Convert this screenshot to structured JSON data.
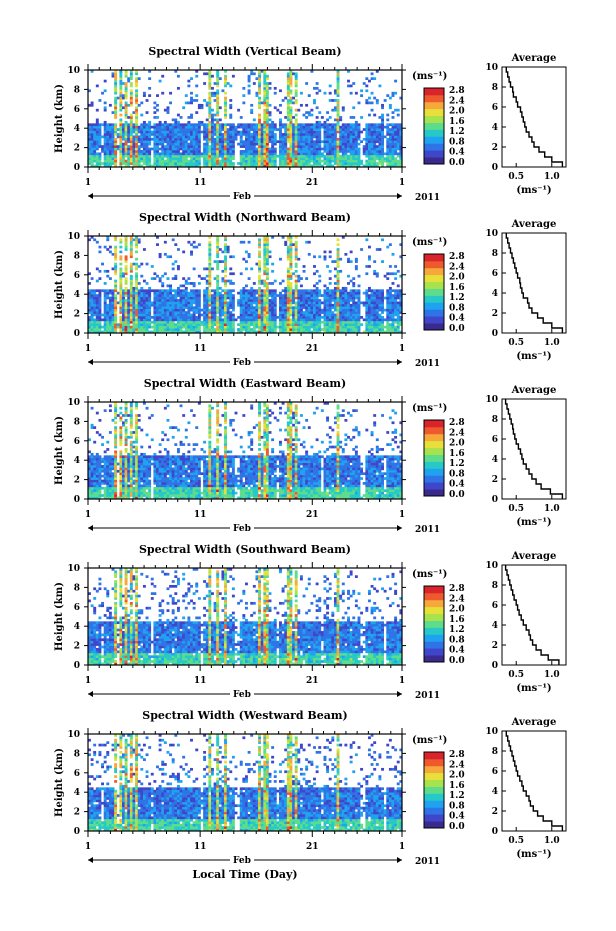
{
  "colors": {
    "colorbar_stops": [
      "#3b2a8e",
      "#3f46c9",
      "#2f74e6",
      "#1fa3f0",
      "#26c9c7",
      "#5ddc8c",
      "#a8e24d",
      "#e8e03a",
      "#f7a83a",
      "#ee5a2d",
      "#d8242a"
    ],
    "background": "#ffffff",
    "vertical_bands": "#ffffff"
  },
  "figure": {
    "xlabel": "Local Time (Day)"
  },
  "chart_data": [
    {
      "type": "heatmap",
      "title": "Spectral Width (Vertical Beam)",
      "ylabel": "Height (km)",
      "ylim": [
        0,
        10
      ],
      "yticks": [
        "0",
        "2",
        "4",
        "6",
        "8",
        "10"
      ],
      "xticks": [
        "1",
        "11",
        "21",
        "1"
      ],
      "month_label": "Feb",
      "year_label": "2011",
      "colorbar": {
        "unit": "(ms⁻¹)",
        "ticks": [
          "0.0",
          "0.4",
          "0.8",
          "1.2",
          "1.6",
          "2.0",
          "2.4",
          "2.8"
        ],
        "range": [
          0,
          2.8
        ]
      },
      "average_profile": {
        "title": "Average",
        "xlabel": "(ms⁻¹)",
        "xlim": [
          0.3,
          1.2
        ],
        "xticks": [
          "0.5",
          "1.0"
        ],
        "yticks": [
          "0",
          "2",
          "4",
          "6",
          "8",
          "10"
        ],
        "height": [
          0,
          0.5,
          1,
          1.5,
          2,
          2.5,
          3,
          3.5,
          4,
          4.5,
          5,
          5.5,
          6,
          6.5,
          7,
          7.5,
          8,
          8.5,
          9,
          9.5
        ],
        "value": [
          1.15,
          1.0,
          0.9,
          0.82,
          0.75,
          0.72,
          0.68,
          0.64,
          0.62,
          0.6,
          0.58,
          0.56,
          0.52,
          0.5,
          0.46,
          0.45,
          0.42,
          0.4,
          0.38,
          0.36
        ]
      }
    },
    {
      "type": "heatmap",
      "title": "Spectral Width (Northward Beam)",
      "ylabel": "Height (km)",
      "ylim": [
        0,
        10
      ],
      "yticks": [
        "0",
        "2",
        "4",
        "6",
        "8",
        "10"
      ],
      "xticks": [
        "1",
        "11",
        "21",
        "1"
      ],
      "month_label": "Feb",
      "year_label": "2011",
      "colorbar": {
        "unit": "(ms⁻¹)",
        "ticks": [
          "0.0",
          "0.4",
          "0.8",
          "1.2",
          "1.6",
          "2.0",
          "2.4",
          "2.8"
        ],
        "range": [
          0,
          2.8
        ]
      },
      "average_profile": {
        "title": "Average",
        "xlabel": "(ms⁻¹)",
        "xlim": [
          0.3,
          1.2
        ],
        "xticks": [
          "0.5",
          "1.0"
        ],
        "yticks": [
          "0",
          "2",
          "4",
          "6",
          "8",
          "10"
        ],
        "height": [
          0,
          0.5,
          1,
          1.5,
          2,
          2.5,
          3,
          3.5,
          4,
          4.5,
          5,
          5.5,
          6,
          6.5,
          7,
          7.5,
          8,
          8.5,
          9,
          9.5
        ],
        "value": [
          1.15,
          1.0,
          0.88,
          0.8,
          0.72,
          0.68,
          0.66,
          0.6,
          0.58,
          0.56,
          0.55,
          0.52,
          0.5,
          0.48,
          0.46,
          0.44,
          0.42,
          0.4,
          0.38,
          0.36
        ]
      }
    },
    {
      "type": "heatmap",
      "title": "Spectral Width (Eastward Beam)",
      "ylabel": "Height (km)",
      "ylim": [
        0,
        10
      ],
      "yticks": [
        "0",
        "2",
        "4",
        "6",
        "8",
        "10"
      ],
      "xticks": [
        "1",
        "11",
        "21",
        "1"
      ],
      "month_label": "Feb",
      "year_label": "2011",
      "colorbar": {
        "unit": "(ms⁻¹)",
        "ticks": [
          "0.0",
          "0.4",
          "0.8",
          "1.2",
          "1.6",
          "2.0",
          "2.4",
          "2.8"
        ],
        "range": [
          0,
          2.8
        ]
      },
      "average_profile": {
        "title": "Average",
        "xlabel": "(ms⁻¹)",
        "xlim": [
          0.3,
          1.2
        ],
        "xticks": [
          "0.5",
          "1.0"
        ],
        "yticks": [
          "0",
          "2",
          "4",
          "6",
          "8",
          "10"
        ],
        "height": [
          0,
          0.5,
          1,
          1.5,
          2,
          2.5,
          3,
          3.5,
          4,
          4.5,
          5,
          5.5,
          6,
          6.5,
          7,
          7.5,
          8,
          8.5,
          9,
          9.5
        ],
        "value": [
          1.15,
          0.98,
          0.85,
          0.78,
          0.72,
          0.68,
          0.64,
          0.6,
          0.58,
          0.56,
          0.53,
          0.5,
          0.48,
          0.46,
          0.45,
          0.43,
          0.41,
          0.39,
          0.37,
          0.35
        ]
      }
    },
    {
      "type": "heatmap",
      "title": "Spectral Width (Southward Beam)",
      "ylabel": "Height (km)",
      "ylim": [
        0,
        10
      ],
      "yticks": [
        "0",
        "2",
        "4",
        "6",
        "8",
        "10"
      ],
      "xticks": [
        "1",
        "11",
        "21",
        "1"
      ],
      "month_label": "Feb",
      "year_label": "2011",
      "colorbar": {
        "unit": "(ms⁻¹)",
        "ticks": [
          "0.0",
          "0.4",
          "0.8",
          "1.2",
          "1.6",
          "2.0",
          "2.4",
          "2.8"
        ],
        "range": [
          0,
          2.8
        ]
      },
      "average_profile": {
        "title": "Average",
        "xlabel": "(ms⁻¹)",
        "xlim": [
          0.3,
          1.2
        ],
        "xticks": [
          "0.5",
          "1.0"
        ],
        "yticks": [
          "0",
          "2",
          "4",
          "6",
          "8",
          "10"
        ],
        "height": [
          0,
          0.5,
          1,
          1.5,
          2,
          2.5,
          3,
          3.5,
          4,
          4.5,
          5,
          5.5,
          6,
          6.5,
          7,
          7.5,
          8,
          8.5,
          9,
          9.5
        ],
        "value": [
          1.1,
          0.95,
          0.85,
          0.78,
          0.73,
          0.7,
          0.68,
          0.64,
          0.6,
          0.57,
          0.54,
          0.52,
          0.5,
          0.47,
          0.45,
          0.43,
          0.41,
          0.39,
          0.37,
          0.35
        ]
      }
    },
    {
      "type": "heatmap",
      "title": "Spectral Width (Westward Beam)",
      "ylabel": "Height (km)",
      "ylim": [
        0,
        10
      ],
      "yticks": [
        "0",
        "2",
        "4",
        "6",
        "8",
        "10"
      ],
      "xticks": [
        "1",
        "11",
        "21",
        "1"
      ],
      "month_label": "Feb",
      "year_label": "2011",
      "colorbar": {
        "unit": "(ms⁻¹)",
        "ticks": [
          "0.0",
          "0.4",
          "0.8",
          "1.2",
          "1.6",
          "2.0",
          "2.4",
          "2.8"
        ],
        "range": [
          0,
          2.8
        ]
      },
      "average_profile": {
        "title": "Average",
        "xlabel": "(ms⁻¹)",
        "xlim": [
          0.3,
          1.2
        ],
        "xticks": [
          "0.5",
          "1.0"
        ],
        "yticks": [
          "0",
          "2",
          "4",
          "6",
          "8",
          "10"
        ],
        "height": [
          0,
          0.5,
          1,
          1.5,
          2,
          2.5,
          3,
          3.5,
          4,
          4.5,
          5,
          5.5,
          6,
          6.5,
          7,
          7.5,
          8,
          8.5,
          9,
          9.5
        ],
        "value": [
          1.15,
          1.0,
          0.88,
          0.8,
          0.74,
          0.7,
          0.68,
          0.64,
          0.6,
          0.58,
          0.55,
          0.52,
          0.5,
          0.48,
          0.46,
          0.44,
          0.42,
          0.4,
          0.38,
          0.36
        ]
      }
    }
  ]
}
